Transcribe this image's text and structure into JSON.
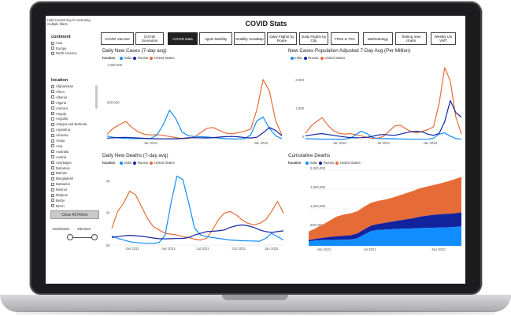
{
  "hint": "Hold Control key for selecting multiple filters",
  "title": "COVID Stats",
  "tabs": [
    {
      "label": "COVID Vaccine",
      "active": false
    },
    {
      "label": "COVID Scenarios",
      "active": false
    },
    {
      "label": "COVID stats",
      "active": true
    },
    {
      "label": "Apple Mobility",
      "active": false
    },
    {
      "label": "Mobility HeatMap",
      "active": false
    },
    {
      "label": "Daily Flights by Route",
      "active": false
    },
    {
      "label": "Daily Flights by City",
      "active": false
    },
    {
      "label": "FR24 & TSA",
      "active": false
    },
    {
      "label": "Methodology",
      "active": false
    },
    {
      "label": "Testing new charts",
      "active": false
    },
    {
      "label": "Weekly US VMT",
      "active": false
    }
  ],
  "continent": {
    "title": "continent",
    "items": [
      "Asia",
      "Europe",
      "North America"
    ]
  },
  "location": {
    "title": "location",
    "items": [
      "Afghanistan",
      "Africa",
      "Albania",
      "Algeria",
      "Andorra",
      "Angola",
      "Anguilla",
      "Antigua and Barbuda",
      "Argentina",
      "Armenia",
      "Aruba",
      "Asia",
      "Australia",
      "Austria",
      "Azerbaijan",
      "Bahamas",
      "Bahrain",
      "Bangladesh",
      "Barbados",
      "Belarus",
      "Belgium",
      "Belize",
      "Benin"
    ]
  },
  "clear_filters": "Clear All Filters",
  "date_range": {
    "start": "10/29/2020",
    "end": "3/5/2022"
  },
  "colors": {
    "india": "#118DFF",
    "russia": "#12239E",
    "us": "#E66C37"
  },
  "legend_label": "location",
  "series_names": [
    "India",
    "Russia",
    "United States"
  ],
  "chart_data": [
    {
      "type": "line",
      "title": "Daily New Cases (7-day avg)",
      "x_ticks": [
        "Jan 2021",
        "Jan 2022"
      ],
      "y_ticks": [
        "1,000,000",
        "500,000"
      ],
      "series": [
        {
          "name": "India",
          "values": [
            45000,
            30000,
            20000,
            14000,
            12000,
            13000,
            14000,
            15000,
            60000,
            200000,
            390000,
            280000,
            100000,
            50000,
            40000,
            38000,
            33000,
            25000,
            18000,
            12000,
            9000,
            7000,
            10000,
            60000,
            250000,
            300000,
            150000,
            50000,
            10000
          ]
        },
        {
          "name": "Russia",
          "values": [
            18000,
            22000,
            26000,
            28000,
            24000,
            20000,
            16000,
            12000,
            9000,
            8000,
            9000,
            10000,
            15000,
            22000,
            24000,
            22000,
            20000,
            25000,
            32000,
            38000,
            40000,
            36000,
            25000,
            20000,
            30000,
            90000,
            160000,
            120000,
            50000
          ]
        },
        {
          "name": "United States",
          "values": [
            70000,
            150000,
            200000,
            240000,
            160000,
            100000,
            70000,
            60000,
            65000,
            55000,
            40000,
            25000,
            13000,
            14000,
            35000,
            90000,
            150000,
            160000,
            120000,
            85000,
            75000,
            90000,
            110000,
            140000,
            400000,
            800000,
            650000,
            250000,
            60000
          ]
        }
      ],
      "ylim": [
        0,
        1000000
      ]
    },
    {
      "type": "line",
      "title": "New Cases Population Adjusted 7-Day Avg (Per Million)",
      "x_ticks": [
        "Jan 2021",
        "Jul 2021",
        "Jan 2022"
      ],
      "y_ticks": [
        "2,000",
        "1,000",
        "0"
      ],
      "series": [
        {
          "name": "India",
          "values": [
            30,
            22,
            15,
            10,
            9,
            10,
            10,
            11,
            45,
            150,
            280,
            200,
            70,
            35,
            30,
            28,
            24,
            18,
            13,
            9,
            7,
            5,
            8,
            45,
            180,
            220,
            110,
            35,
            8
          ]
        },
        {
          "name": "Russia",
          "values": [
            125,
            150,
            180,
            195,
            165,
            140,
            110,
            85,
            65,
            55,
            60,
            70,
            105,
            150,
            165,
            150,
            140,
            175,
            220,
            260,
            275,
            250,
            175,
            140,
            200,
            600,
            1300,
            900,
            750
          ]
        },
        {
          "name": "United States",
          "values": [
            210,
            450,
            600,
            730,
            480,
            300,
            210,
            180,
            195,
            165,
            120,
            75,
            40,
            42,
            105,
            270,
            450,
            480,
            360,
            255,
            225,
            270,
            330,
            420,
            1200,
            2400,
            1950,
            750,
            180
          ]
        }
      ],
      "ylim": [
        0,
        2500
      ]
    },
    {
      "type": "line",
      "title": "Daily New Deaths (7-day avg)",
      "x_ticks": [
        "Jan 2021",
        "Apr 2021",
        "Jul 2021",
        "Oct 2021",
        "Jan 2022"
      ],
      "y_ticks": [
        "4K",
        "2K",
        "0K"
      ],
      "series": [
        {
          "name": "India",
          "values": [
            550,
            400,
            300,
            200,
            150,
            120,
            110,
            100,
            150,
            600,
            2500,
            4100,
            3900,
            2500,
            1000,
            600,
            500,
            450,
            400,
            350,
            300,
            280,
            260,
            250,
            240,
            230,
            400,
            700,
            500,
            300
          ]
        },
        {
          "name": "Russia",
          "values": [
            450,
            500,
            550,
            580,
            560,
            520,
            480,
            420,
            380,
            370,
            380,
            390,
            400,
            450,
            600,
            700,
            800,
            820,
            850,
            900,
            1050,
            1150,
            1200,
            1150,
            1050,
            900,
            800,
            750,
            800,
            850
          ]
        },
        {
          "name": "United States",
          "values": [
            1000,
            2000,
            2500,
            3200,
            3000,
            2300,
            1600,
            1100,
            900,
            700,
            650,
            600,
            500,
            450,
            350,
            300,
            400,
            900,
            1500,
            1900,
            2000,
            1800,
            1500,
            1300,
            1200,
            1300,
            1500,
            2000,
            2600,
            1900
          ]
        }
      ],
      "ylim": [
        0,
        4500
      ]
    },
    {
      "type": "area",
      "title": "Cumulative Deaths",
      "x_ticks": [
        "Jan 2021",
        "Jul 2021",
        "Jan 2022"
      ],
      "y_ticks": [
        "2,000,000",
        "1,500,000",
        "1,000,000",
        "500,000",
        "0"
      ],
      "series": [
        {
          "name": "India",
          "values": [
            120000,
            140000,
            150000,
            155000,
            158000,
            160000,
            165000,
            200000,
            300000,
            390000,
            420000,
            430000,
            440000,
            450000,
            455000,
            460000,
            470000,
            475000,
            480000,
            485000,
            490000,
            500000,
            515000
          ]
        },
        {
          "name": "Russia",
          "values": [
            30000,
            45000,
            60000,
            80000,
            95000,
            105000,
            115000,
            125000,
            135000,
            145000,
            160000,
            180000,
            200000,
            220000,
            245000,
            270000,
            300000,
            320000,
            340000,
            350000,
            355000,
            360000,
            370000
          ]
        },
        {
          "name": "United States",
          "values": [
            230000,
            280000,
            350000,
            430000,
            520000,
            560000,
            580000,
            590000,
            600000,
            605000,
            610000,
            615000,
            630000,
            660000,
            690000,
            720000,
            750000,
            770000,
            790000,
            820000,
            860000,
            900000,
            940000
          ]
        }
      ],
      "ylim": [
        0,
        2000000
      ]
    }
  ]
}
